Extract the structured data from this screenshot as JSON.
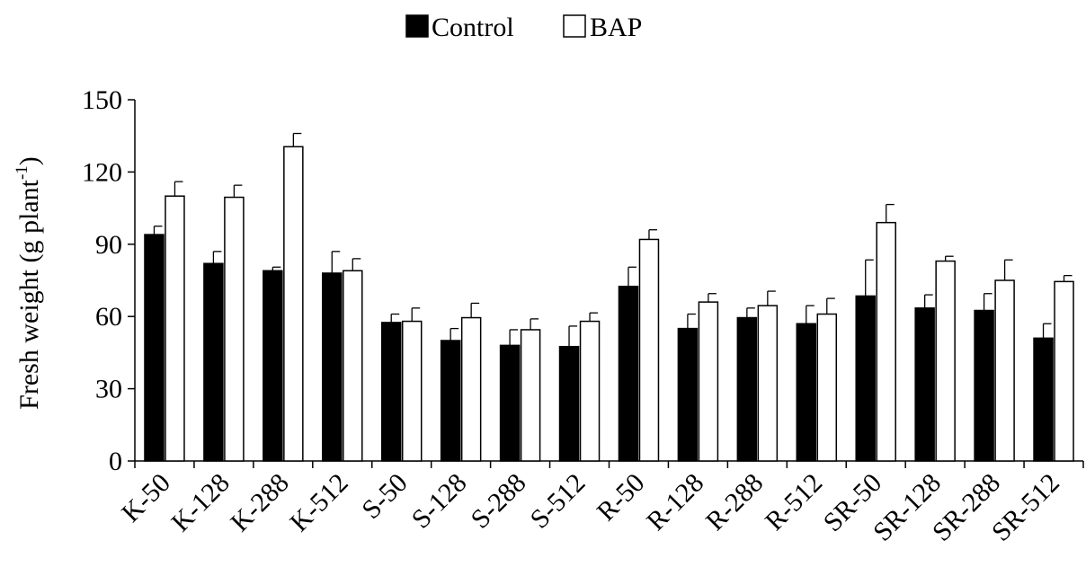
{
  "chart_data": {
    "type": "bar",
    "ylabel": "Fresh weight (g plant",
    "ylabel_superscript": "-1",
    "ylabel_close": ")",
    "xlabel": "",
    "ylim": [
      0,
      150
    ],
    "yticks": [
      0,
      30,
      60,
      90,
      120,
      150
    ],
    "grid": false,
    "legend_position": "top-center",
    "categories": [
      "K-50",
      "K-128",
      "K-288",
      "K-512",
      "S-50",
      "S-128",
      "S-288",
      "S-512",
      "R-50",
      "R-128",
      "R-288",
      "R-512",
      "SR-50",
      "SR-128",
      "SR-288",
      "SR-512"
    ],
    "series": [
      {
        "name": "Control",
        "color": "#000000",
        "values": [
          94,
          82,
          79,
          78,
          57.5,
          50,
          48,
          47.5,
          72.5,
          55,
          59.5,
          57,
          68.5,
          63.5,
          62.5,
          51
        ],
        "errors": [
          3.5,
          5,
          1.5,
          9,
          3.5,
          5,
          6.5,
          8.5,
          8,
          6,
          4,
          7.5,
          15,
          5.5,
          7,
          6
        ]
      },
      {
        "name": "BAP",
        "color": "#ffffff",
        "values": [
          110,
          109.5,
          130.5,
          79,
          58,
          59.5,
          54.5,
          58,
          92,
          66,
          64.5,
          61,
          99,
          83,
          75,
          74.5
        ],
        "errors": [
          6,
          5,
          5.5,
          5,
          5.5,
          6,
          4.5,
          3.5,
          4,
          3.5,
          6,
          6.5,
          7.5,
          2,
          8.5,
          2.5
        ]
      }
    ]
  }
}
